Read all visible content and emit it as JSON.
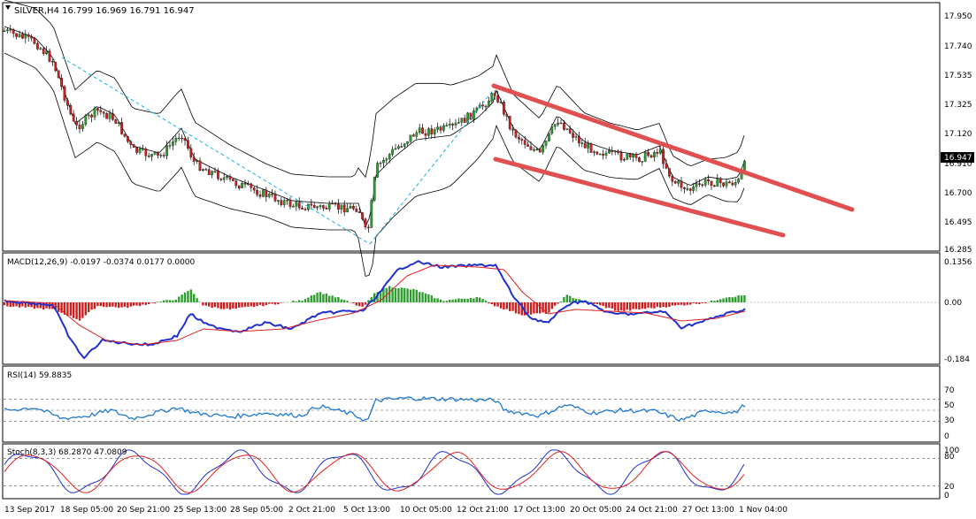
{
  "main_chart": {
    "header": "SILVER,H4  16.799 16.969 16.791 16.947",
    "price_axis": [
      "17.950",
      "17.740",
      "17.535",
      "17.325",
      "17.120",
      "16.910",
      "16.700",
      "16.495",
      "16.285"
    ],
    "current_price": "16.947"
  },
  "macd": {
    "header": "MACD(12,26,9) -0.0197 -0.0374 0.0177 0.0000",
    "axis": [
      "0.1356",
      "0.00",
      "-0.184"
    ]
  },
  "rsi": {
    "header": "RSI(14) 59.8835",
    "axis": [
      "70",
      "50",
      "30",
      "0"
    ],
    "levels": [
      70,
      50,
      30
    ]
  },
  "stoch": {
    "header": "Stoch(8,3,3) 68.2870 47.0809",
    "axis": [
      "100",
      "80",
      "20",
      "0"
    ],
    "levels": [
      80,
      20
    ]
  },
  "time_axis": [
    "13 Sep 2017",
    "18 Sep 05:00",
    "20 Sep 21:00",
    "25 Sep 13:00",
    "28 Sep 05:00",
    "2 Oct 21:00",
    "5 Oct 13:00",
    "10 Oct 05:00",
    "12 Oct 21:00",
    "17 Oct 13:00",
    "20 Oct 05:00",
    "24 Oct 21:00",
    "27 Oct 13:00",
    "1 Nov 04:00"
  ],
  "colors": {
    "bull": "#2e9e2e",
    "bear": "#cc2020",
    "channel": "#e05050",
    "macd_line": "#1f30d0",
    "signal_line": "#e02020",
    "rsi_line": "#1e78d2",
    "stoch_main": "#1f30d0",
    "stoch_signal": "#e02020",
    "trend": "#20b2d8"
  },
  "icons": {
    "scroll": "triangle-down-icon"
  }
}
